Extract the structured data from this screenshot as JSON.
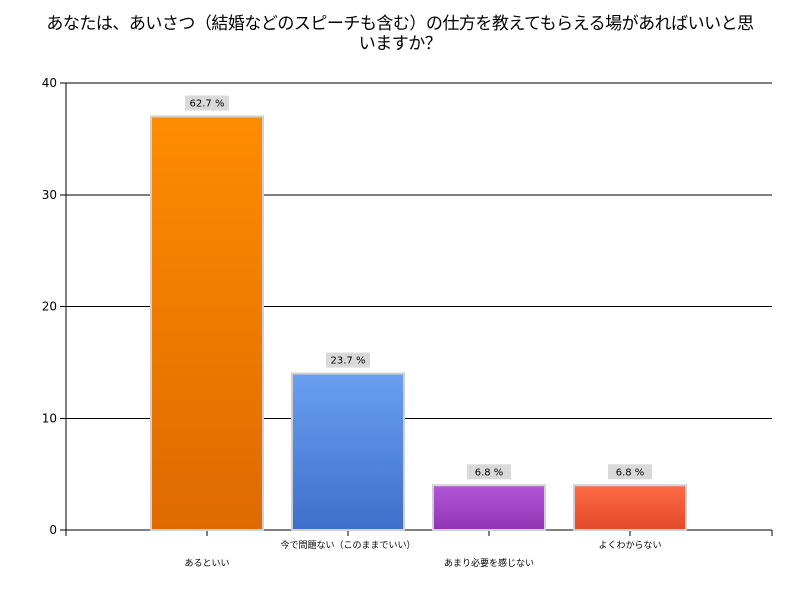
{
  "chart_data": {
    "type": "bar",
    "title": "あなたは、あいさつ（結婚などのスピーチも含む）の仕方を教えてもらえる場があればいいと思いますか？",
    "categories": [
      "あるといい",
      "今で問題ない（このままでいい）",
      "あまり必要を感じない",
      "よくわからない"
    ],
    "values": [
      37,
      14,
      4,
      4
    ],
    "data_labels": [
      "62.7 %",
      "23.7 %",
      "6.8 %",
      "6.8 %"
    ],
    "ylim": [
      0,
      40
    ],
    "yticks": [
      0,
      10,
      20,
      30,
      40
    ],
    "grid": true,
    "legend": "none",
    "colors": [
      {
        "top": "#ff8c00",
        "bottom": "#dd6a00"
      },
      {
        "top": "#6a9ff0",
        "bottom": "#3e6fcb"
      },
      {
        "top": "#b456d9",
        "bottom": "#8f34b3"
      },
      {
        "top": "#ff6a45",
        "bottom": "#e04a28"
      }
    ],
    "label_box_color": "#d9d9d9",
    "bar_border_color": "#d0d0d0"
  }
}
